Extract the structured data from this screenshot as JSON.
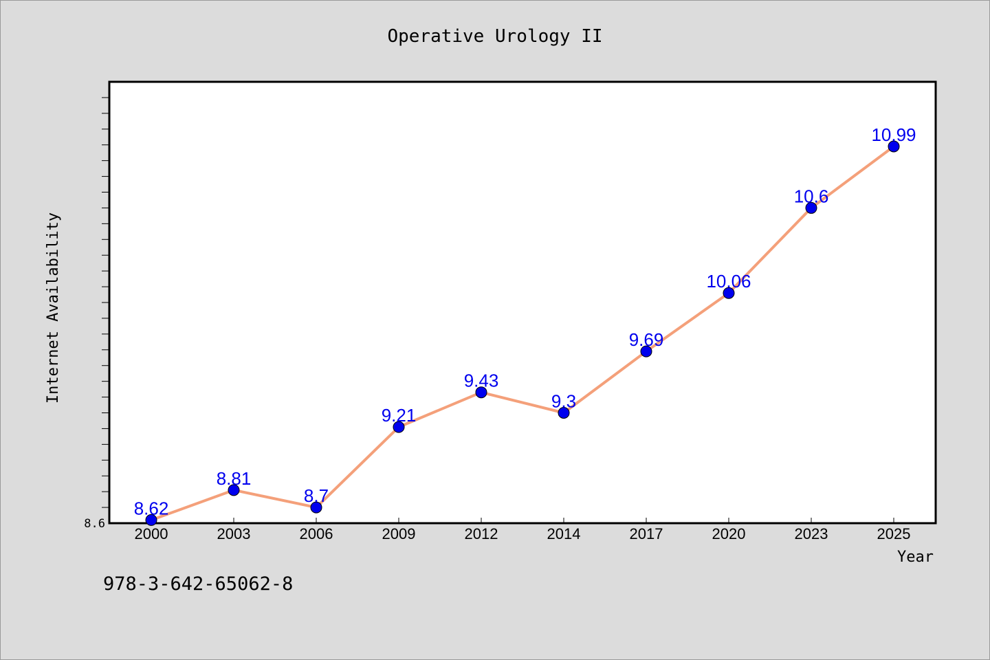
{
  "chart_data": {
    "type": "line",
    "title": "Operative Urology II",
    "xlabel": "Year",
    "ylabel": "Internet Availability",
    "categories": [
      "2000",
      "2003",
      "2006",
      "2009",
      "2012",
      "2014",
      "2017",
      "2020",
      "2023",
      "2025"
    ],
    "series": [
      {
        "values": [
          8.62,
          8.81,
          8.7,
          9.21,
          9.43,
          9.3,
          9.69,
          10.06,
          10.6,
          10.99
        ],
        "data_labels": [
          "8.62",
          "8.81",
          "8.7",
          "9.21",
          "9.43",
          "9.3",
          "9.69",
          "10.06",
          "10.6",
          "10.99"
        ]
      }
    ],
    "y_tick_labels": [
      "8.6"
    ],
    "ylim": [
      8.6,
      11.4
    ],
    "grid": false,
    "colors": {
      "line": "#f4a07a",
      "marker": "#0000ee",
      "label": "#0000ee"
    }
  },
  "footer": {
    "isbn": "978-3-642-65062-8"
  }
}
